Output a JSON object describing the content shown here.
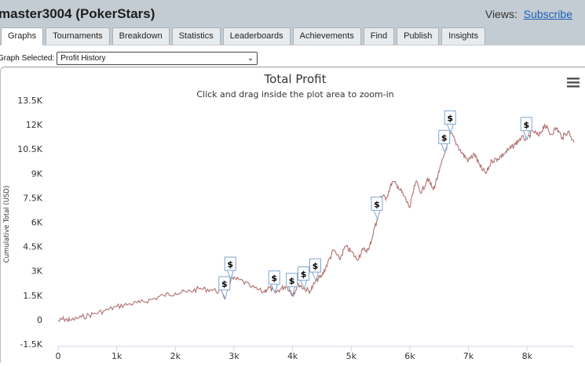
{
  "page": {
    "title": "master3004 (PokerStars)",
    "views_label": "Views:",
    "subscribe_label": "Subscribe"
  },
  "tabs": [
    {
      "label": "Graphs",
      "active": true
    },
    {
      "label": "Tournaments"
    },
    {
      "label": "Breakdown"
    },
    {
      "label": "Statistics"
    },
    {
      "label": "Leaderboards"
    },
    {
      "label": "Achievements"
    },
    {
      "label": "Find"
    },
    {
      "label": "Publish"
    },
    {
      "label": "Insights"
    }
  ],
  "graph_selector": {
    "label": "Graph Selected:",
    "value": "Profit History"
  },
  "chart_data": {
    "type": "line",
    "title": "Total Profit",
    "subtitle": "Click and drag inside the plot area to zoom-in",
    "ylabel": "Cumulative Total (USD)",
    "xlabel": "",
    "xlim": [
      0,
      8800
    ],
    "ylim": [
      -1500,
      13500
    ],
    "x_ticks": [
      0,
      1000,
      2000,
      3000,
      4000,
      5000,
      6000,
      7000,
      8000
    ],
    "x_tick_labels": [
      "0",
      "1k",
      "2k",
      "3k",
      "4k",
      "5k",
      "6k",
      "7k",
      "8k"
    ],
    "y_ticks": [
      -1500,
      0,
      1500,
      3000,
      4500,
      6000,
      7500,
      9000,
      10500,
      12000,
      13500
    ],
    "y_tick_labels": [
      "-1.5K",
      "0",
      "1.5K",
      "3K",
      "4.5K",
      "6K",
      "7.5K",
      "9K",
      "10.5K",
      "12K",
      "13.5K"
    ],
    "grid": false,
    "line_color": "#b07070",
    "series": [
      {
        "x": [
          0,
          100,
          200,
          400,
          600,
          800,
          1000,
          1200,
          1400,
          1600,
          1800,
          2000,
          2200,
          2400,
          2600,
          2800,
          2850,
          2950,
          3100,
          3300,
          3500,
          3600,
          3700,
          3800,
          3900,
          4000,
          4100,
          4200,
          4300,
          4400,
          4500,
          4600,
          4700,
          4800,
          4900,
          5000,
          5100,
          5200,
          5300,
          5400,
          5450,
          5500,
          5600,
          5700,
          5800,
          5900,
          6000,
          6100,
          6200,
          6300,
          6400,
          6500,
          6600,
          6700,
          6800,
          6900,
          7000,
          7100,
          7200,
          7300,
          7400,
          7500,
          7600,
          7700,
          7800,
          7900,
          8000,
          8100,
          8200,
          8300,
          8400,
          8500,
          8600,
          8700,
          8800
        ],
        "y": [
          -100,
          50,
          -50,
          150,
          350,
          550,
          800,
          950,
          1050,
          1250,
          1500,
          1650,
          1700,
          1900,
          1850,
          1700,
          1300,
          2500,
          2450,
          2000,
          1700,
          2000,
          1650,
          1900,
          2100,
          1500,
          2200,
          1900,
          1750,
          2400,
          2700,
          3500,
          4300,
          3700,
          4500,
          4200,
          3700,
          4300,
          4300,
          5700,
          6200,
          7600,
          7500,
          8500,
          8200,
          7600,
          6900,
          8500,
          7800,
          8700,
          8000,
          9100,
          10300,
          11500,
          10800,
          10200,
          9800,
          10200,
          9400,
          9000,
          9800,
          9900,
          10200,
          10500,
          10800,
          11200,
          11100,
          11600,
          11300,
          12000,
          11400,
          11800,
          11200,
          11600,
          10900
        ]
      }
    ],
    "markers": [
      {
        "x": 2850,
        "y": 1300,
        "label": "$"
      },
      {
        "x": 2950,
        "y": 2500,
        "label": "$"
      },
      {
        "x": 3700,
        "y": 1650,
        "label": "$"
      },
      {
        "x": 4000,
        "y": 1500,
        "label": "$"
      },
      {
        "x": 4200,
        "y": 1900,
        "label": "$"
      },
      {
        "x": 4400,
        "y": 2400,
        "label": "$"
      },
      {
        "x": 5450,
        "y": 6200,
        "label": "$"
      },
      {
        "x": 6600,
        "y": 10300,
        "label": "$"
      },
      {
        "x": 6700,
        "y": 11500,
        "label": "$"
      },
      {
        "x": 8000,
        "y": 11100,
        "label": "$"
      }
    ]
  }
}
